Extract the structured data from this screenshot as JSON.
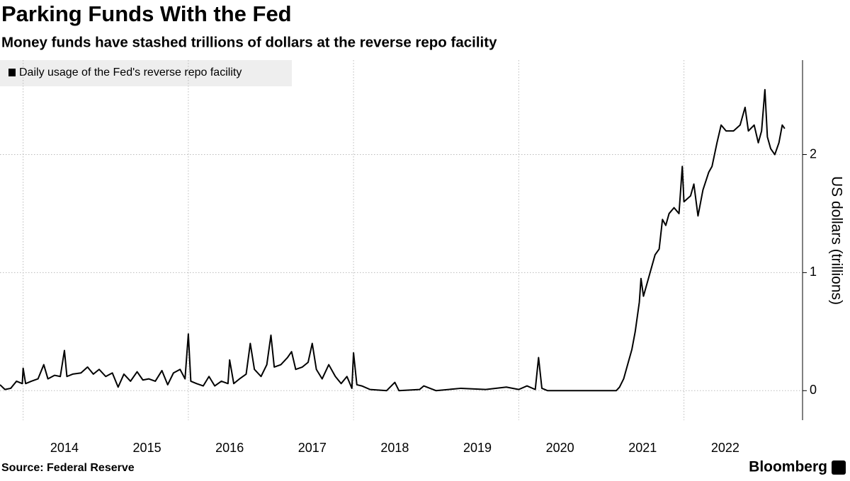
{
  "chart_data": {
    "type": "line",
    "title": "Parking Funds With the Fed",
    "subtitle": "Money funds have stashed trillions of dollars at the reverse repo facility",
    "y_label": "US dollars (trillions)",
    "source": "Source: Federal Reserve",
    "brand": "Bloomberg",
    "x": [
      2013.72,
      2013.78,
      2013.85,
      2013.92,
      2013.99,
      2014.0,
      2014.03,
      2014.1,
      2014.18,
      2014.25,
      2014.3,
      2014.38,
      2014.45,
      2014.5,
      2014.53,
      2014.6,
      2014.7,
      2014.78,
      2014.85,
      2014.92,
      2015.0,
      2015.08,
      2015.15,
      2015.22,
      2015.3,
      2015.38,
      2015.45,
      2015.52,
      2015.6,
      2015.68,
      2015.75,
      2015.82,
      2015.9,
      2015.96,
      2016.0,
      2016.03,
      2016.1,
      2016.18,
      2016.25,
      2016.32,
      2016.4,
      2016.48,
      2016.5,
      2016.55,
      2016.62,
      2016.7,
      2016.75,
      2016.8,
      2016.88,
      2016.95,
      2017.0,
      2017.04,
      2017.12,
      2017.2,
      2017.25,
      2017.3,
      2017.38,
      2017.45,
      2017.5,
      2017.55,
      2017.62,
      2017.7,
      2017.78,
      2017.85,
      2017.92,
      2017.98,
      2018.0,
      2018.04,
      2018.1,
      2018.2,
      2018.4,
      2018.5,
      2018.55,
      2018.8,
      2018.85,
      2019.0,
      2019.3,
      2019.6,
      2019.85,
      2020.0,
      2020.1,
      2020.2,
      2020.24,
      2020.28,
      2020.35,
      2020.7,
      2021.0,
      2021.18,
      2021.22,
      2021.27,
      2021.31,
      2021.37,
      2021.41,
      2021.46,
      2021.48,
      2021.51,
      2021.57,
      2021.61,
      2021.65,
      2021.7,
      2021.74,
      2021.78,
      2021.82,
      2021.88,
      2021.94,
      2021.98,
      2022.0,
      2022.08,
      2022.12,
      2022.17,
      2022.23,
      2022.3,
      2022.34,
      2022.4,
      2022.45,
      2022.51,
      2022.6,
      2022.68,
      2022.74,
      2022.78,
      2022.85,
      2022.9,
      2022.94,
      2022.98,
      2023.01,
      2023.05,
      2023.1,
      2023.15,
      2023.19,
      2023.22
    ],
    "series": [
      {
        "name": "Daily usage of the Fed's reverse repo facility",
        "color": "#000000",
        "values": [
          0.05,
          0.01,
          0.02,
          0.08,
          0.06,
          0.19,
          0.06,
          0.08,
          0.1,
          0.22,
          0.1,
          0.13,
          0.12,
          0.34,
          0.12,
          0.14,
          0.15,
          0.2,
          0.14,
          0.18,
          0.12,
          0.15,
          0.03,
          0.14,
          0.08,
          0.16,
          0.09,
          0.1,
          0.08,
          0.17,
          0.05,
          0.15,
          0.18,
          0.1,
          0.48,
          0.08,
          0.06,
          0.04,
          0.12,
          0.04,
          0.08,
          0.06,
          0.26,
          0.06,
          0.1,
          0.14,
          0.4,
          0.18,
          0.12,
          0.22,
          0.47,
          0.2,
          0.22,
          0.28,
          0.33,
          0.18,
          0.2,
          0.24,
          0.4,
          0.18,
          0.1,
          0.22,
          0.12,
          0.06,
          0.12,
          0.02,
          0.32,
          0.05,
          0.04,
          0.01,
          0.0,
          0.07,
          0.0,
          0.01,
          0.04,
          0.0,
          0.02,
          0.01,
          0.03,
          0.01,
          0.04,
          0.01,
          0.28,
          0.02,
          0.0,
          0.0,
          0.0,
          0.0,
          0.03,
          0.1,
          0.2,
          0.35,
          0.5,
          0.75,
          0.95,
          0.8,
          0.95,
          1.05,
          1.15,
          1.2,
          1.45,
          1.4,
          1.5,
          1.55,
          1.5,
          1.9,
          1.6,
          1.65,
          1.75,
          1.48,
          1.7,
          1.85,
          1.9,
          2.1,
          2.25,
          2.2,
          2.2,
          2.25,
          2.4,
          2.2,
          2.25,
          2.1,
          2.2,
          2.55,
          2.15,
          2.05,
          2.0,
          2.1,
          2.25,
          2.22
        ]
      }
    ],
    "xlim": [
      2013.72,
      2023.41
    ],
    "xticks": [
      {
        "value": 2014.5,
        "label": "2014"
      },
      {
        "value": 2015.5,
        "label": "2015"
      },
      {
        "value": 2016.5,
        "label": "2016"
      },
      {
        "value": 2017.5,
        "label": "2017"
      },
      {
        "value": 2018.5,
        "label": "2018"
      },
      {
        "value": 2019.5,
        "label": "2019"
      },
      {
        "value": 2020.5,
        "label": "2020"
      },
      {
        "value": 2021.5,
        "label": "2021"
      },
      {
        "value": 2022.5,
        "label": "2022"
      }
    ],
    "xgrid": [
      2014,
      2016,
      2018,
      2020,
      2022
    ],
    "ylim": [
      -0.25,
      2.8
    ],
    "yticks": [
      0,
      1,
      2
    ],
    "grid": true
  }
}
